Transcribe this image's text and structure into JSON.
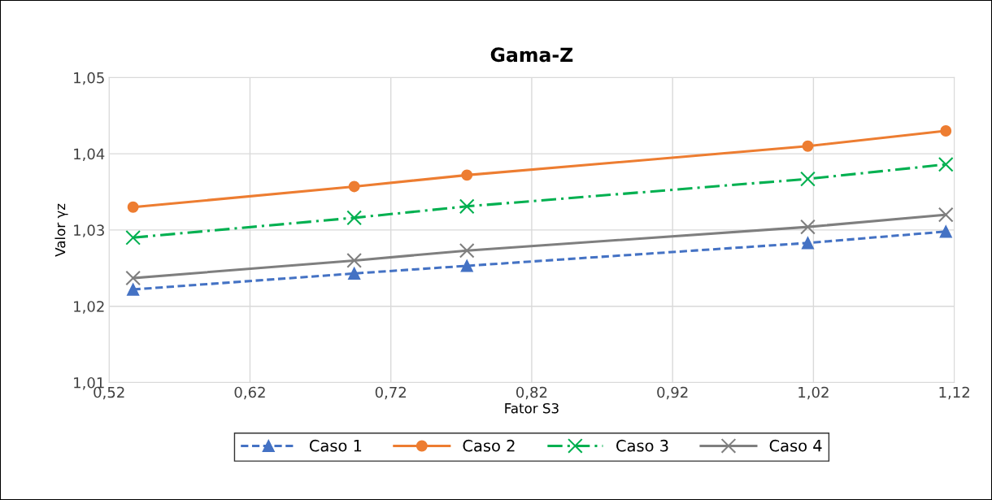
{
  "chart_data": {
    "type": "line",
    "title": "Gama-Z",
    "xlabel": "Fator S3",
    "ylabel": "Valor γz",
    "x": [
      0.537,
      0.694,
      0.774,
      1.016,
      1.114
    ],
    "series": [
      {
        "name": "Caso 1",
        "color": "#4472c4",
        "marker": "triangle",
        "line_style": "dashed",
        "values": [
          1.0222,
          1.0243,
          1.0253,
          1.0283,
          1.0298
        ]
      },
      {
        "name": "Caso 2",
        "color": "#ed7d31",
        "marker": "circle",
        "line_style": "solid",
        "values": [
          1.033,
          1.0357,
          1.0372,
          1.041,
          1.043
        ]
      },
      {
        "name": "Caso 3",
        "color": "#00b050",
        "marker": "cross",
        "line_style": "dashdot",
        "values": [
          1.029,
          1.0316,
          1.0331,
          1.0367,
          1.0386
        ]
      },
      {
        "name": "Caso 4",
        "color": "#7f7f7f",
        "marker": "cross",
        "line_style": "solid",
        "values": [
          1.0237,
          1.026,
          1.0273,
          1.0304,
          1.032
        ]
      }
    ],
    "xlim": [
      0.52,
      1.12
    ],
    "xticks": [
      {
        "value": 0.52,
        "label": "0,52"
      },
      {
        "value": 0.62,
        "label": "0,62"
      },
      {
        "value": 0.72,
        "label": "0,72"
      },
      {
        "value": 0.82,
        "label": "0,82"
      },
      {
        "value": 0.92,
        "label": "0,92"
      },
      {
        "value": 1.02,
        "label": "1,02"
      },
      {
        "value": 1.12,
        "label": "1,12"
      }
    ],
    "ylim": [
      1.01,
      1.05
    ],
    "yticks": [
      {
        "value": 1.01,
        "label": "1,01"
      },
      {
        "value": 1.02,
        "label": "1,02"
      },
      {
        "value": 1.03,
        "label": "1,03"
      },
      {
        "value": 1.04,
        "label": "1,04"
      },
      {
        "value": 1.05,
        "label": "1,05"
      }
    ],
    "grid": true,
    "legend": "bottom"
  }
}
